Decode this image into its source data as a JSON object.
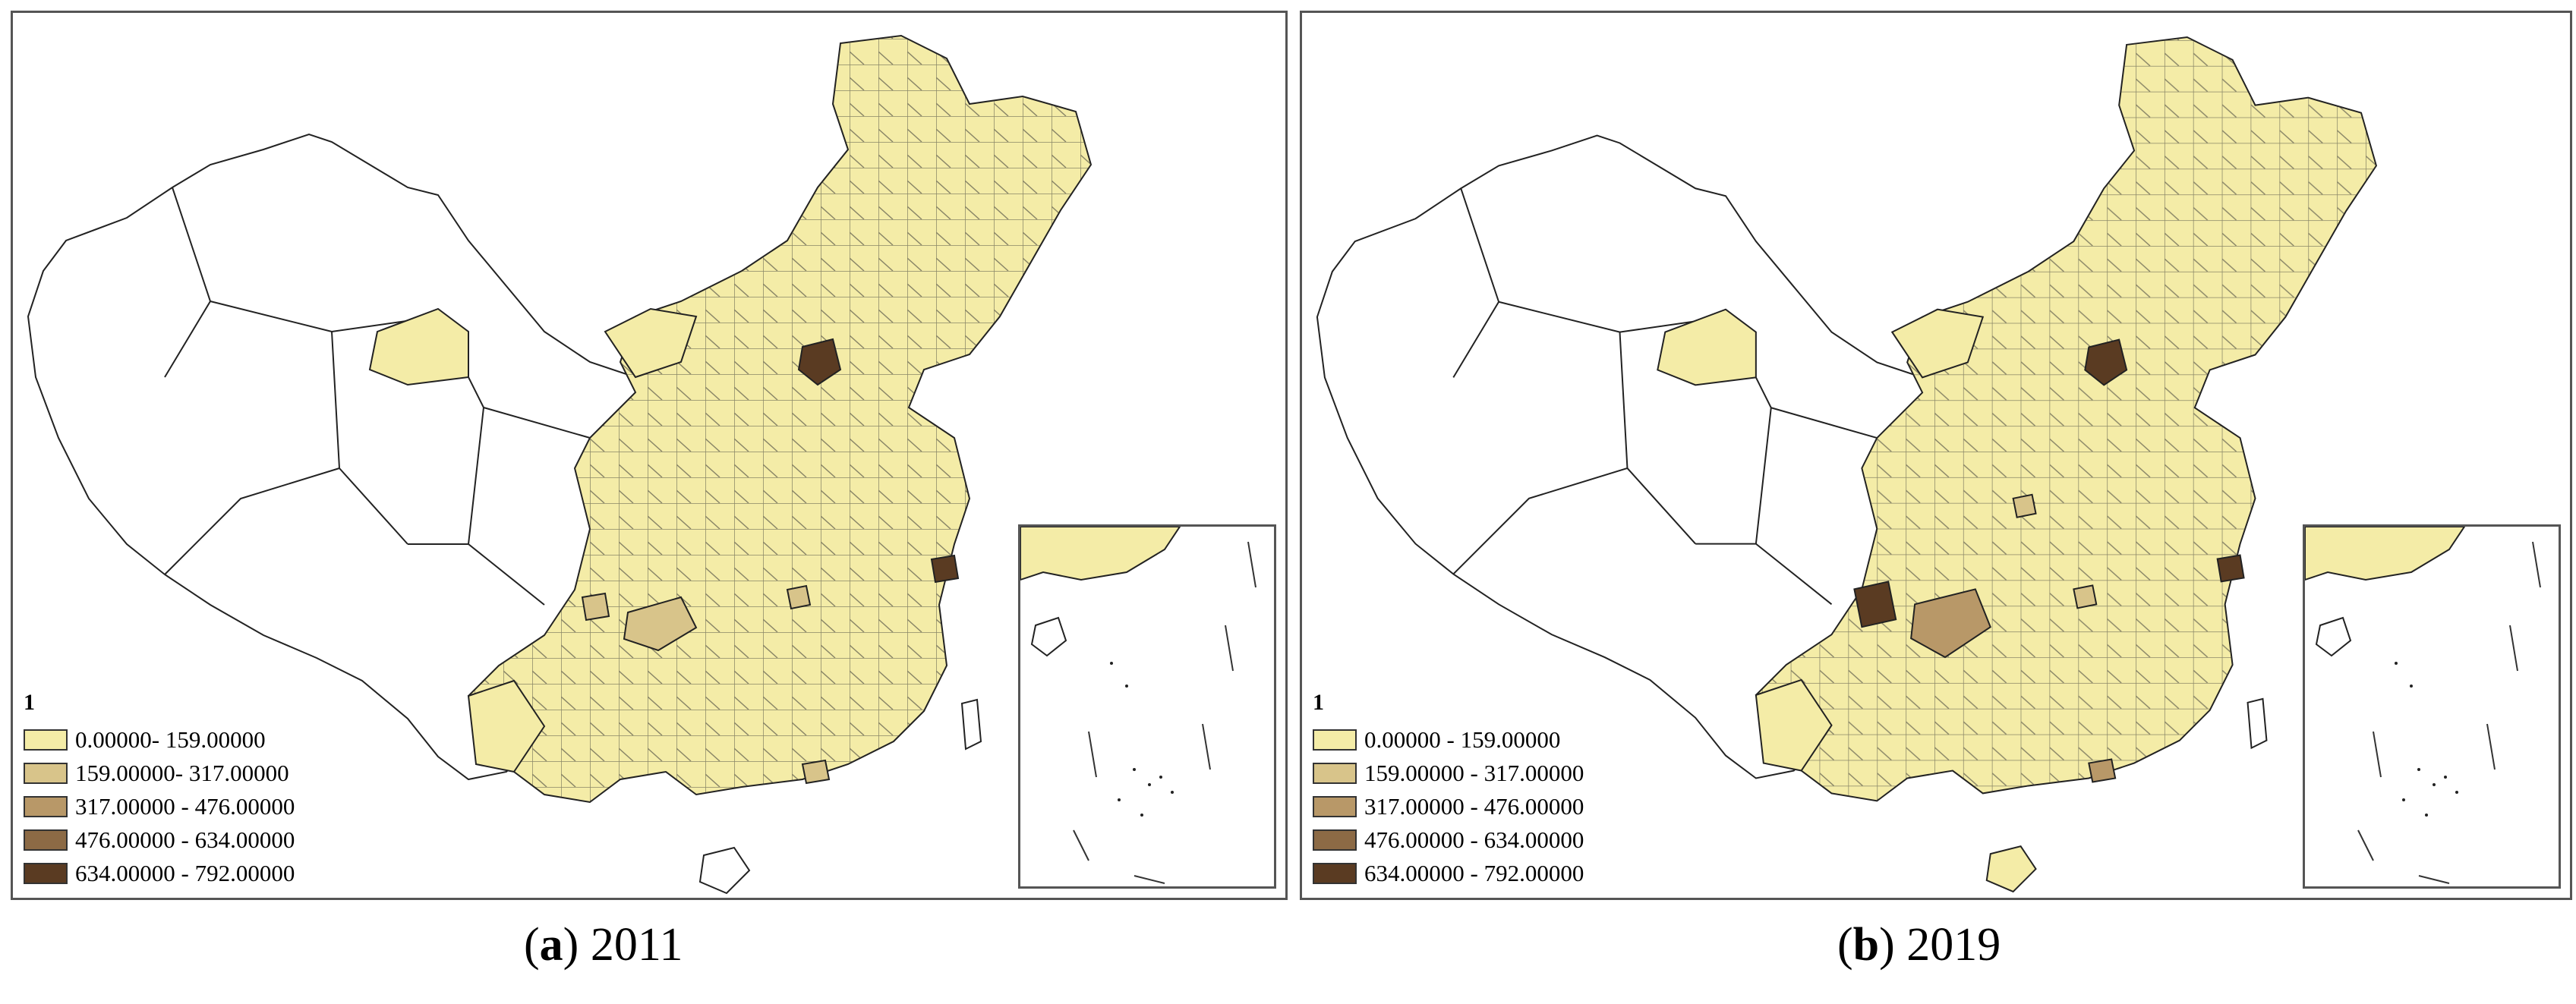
{
  "colors": {
    "class1": "#f4eca7",
    "class2": "#d8c48a",
    "class3": "#b89868",
    "class4": "#8c6a45",
    "class5": "#5a3b22",
    "empty": "#ffffff",
    "border": "#222222"
  },
  "legend": {
    "title": "1",
    "classes": [
      "0.00000- 159.00000",
      "159.00000- 317.00000",
      "317.00000 - 476.00000",
      "476.00000 - 634.00000",
      "634.00000 - 792.00000"
    ]
  },
  "legend_b": {
    "title": "1",
    "classes": [
      "0.00000 - 159.00000",
      "159.00000 - 317.00000",
      "317.00000 - 476.00000",
      "476.00000 - 634.00000",
      "634.00000 - 792.00000"
    ]
  },
  "panels": [
    {
      "letter": "a",
      "year": "2011"
    },
    {
      "letter": "b",
      "year": "2019"
    }
  ]
}
